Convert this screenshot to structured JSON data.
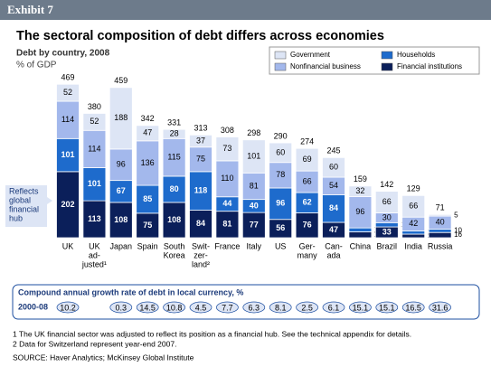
{
  "header": "Exhibit 7",
  "chart_data": {
    "type": "bar",
    "stacked": true,
    "title": "The sectoral composition of debt differs across economies",
    "subtitle": "Debt by country, 2008",
    "unit": "% of GDP",
    "annotation": [
      "Reflects",
      "global",
      "financial",
      "hub"
    ],
    "categories": [
      [
        "UK"
      ],
      [
        "UK",
        "ad-",
        "justed¹"
      ],
      [
        "Japan"
      ],
      [
        "Spain"
      ],
      [
        "South",
        "Korea"
      ],
      [
        "Swit-",
        "zer-",
        "land²"
      ],
      [
        "France"
      ],
      [
        "Italy"
      ],
      [
        "US"
      ],
      [
        "Ger-",
        "many"
      ],
      [
        "Can-",
        "ada"
      ],
      [
        "China"
      ],
      [
        "Brazil"
      ],
      [
        "India"
      ],
      [
        "Russia"
      ]
    ],
    "series": [
      {
        "name": "Financial institutions",
        "color": "#0b1f5a",
        "values": [
          202,
          113,
          108,
          75,
          108,
          84,
          81,
          77,
          56,
          76,
          47,
          18,
          33,
          11,
          16
        ]
      },
      {
        "name": "Households",
        "color": "#1e6bcc",
        "values": [
          101,
          101,
          67,
          85,
          80,
          118,
          44,
          40,
          96,
          62,
          84,
          12,
          13,
          10,
          10
        ]
      },
      {
        "name": "Nonfinancial business",
        "color": "#a3b8ec",
        "values": [
          114,
          114,
          96,
          136,
          115,
          75,
          110,
          81,
          78,
          66,
          54,
          96,
          30,
          42,
          40
        ]
      },
      {
        "name": "Government",
        "color": "#dde5f5",
        "values": [
          52,
          52,
          188,
          47,
          28,
          37,
          73,
          101,
          60,
          69,
          60,
          32,
          66,
          66,
          5
        ]
      }
    ],
    "totals": [
      469,
      380,
      459,
      342,
      331,
      313,
      308,
      298,
      290,
      274,
      245,
      159,
      142,
      129,
      71
    ],
    "legend_order": [
      3,
      1,
      2,
      0
    ],
    "growth_title": "Compound annual growth rate of debt in local currency, %",
    "growth_period": "2000-08",
    "growth": [
      10.2,
      null,
      0.3,
      14.5,
      10.8,
      4.5,
      7.7,
      6.3,
      8.1,
      2.5,
      6.1,
      15.1,
      15.1,
      16.5,
      31.6
    ],
    "footnotes": [
      "1 The UK financial sector was adjusted to reflect its position as a financial hub. See the technical appendix for details.",
      "2 Data for Switzerland represent year-end 2007."
    ],
    "source": "SOURCE: Haver Analytics; McKinsey Global Institute"
  }
}
